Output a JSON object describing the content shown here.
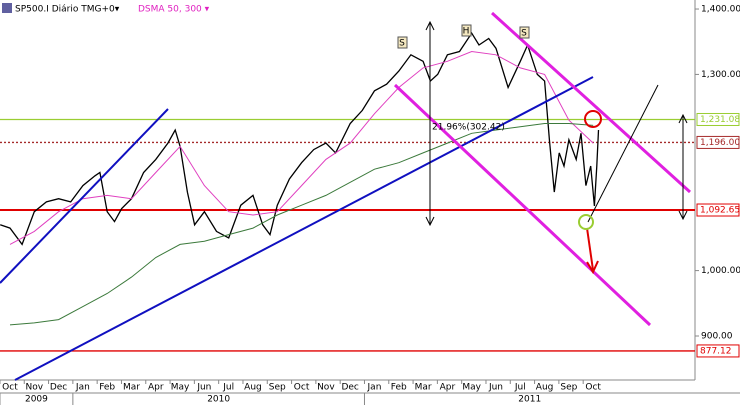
{
  "chart_data": {
    "type": "line",
    "header": {
      "symbol": "SP500.I Diário TMG+0▾",
      "indicator": "DSMA 50, 300 ▾"
    },
    "xlim": [
      -0.41,
      28.19
    ],
    "ylim": [
      832.7,
      1413.8
    ],
    "xticks": [
      {
        "value": 0,
        "label": "Oct"
      },
      {
        "value": 1,
        "label": "Nov"
      },
      {
        "value": 2,
        "label": "Dec"
      },
      {
        "value": 3,
        "label": "Jan"
      },
      {
        "value": 4,
        "label": "Feb"
      },
      {
        "value": 5,
        "label": "Mar"
      },
      {
        "value": 6,
        "label": "Apr"
      },
      {
        "value": 7,
        "label": "May"
      },
      {
        "value": 8,
        "label": "Jun"
      },
      {
        "value": 9,
        "label": "Jul"
      },
      {
        "value": 10,
        "label": "Aug"
      },
      {
        "value": 11,
        "label": "Sep"
      },
      {
        "value": 12,
        "label": "Oct"
      },
      {
        "value": 13,
        "label": "Nov"
      },
      {
        "value": 14,
        "label": "Dec"
      },
      {
        "value": 15,
        "label": "Jan"
      },
      {
        "value": 16,
        "label": "Feb"
      },
      {
        "value": 17,
        "label": "Mar"
      },
      {
        "value": 18,
        "label": "Apr"
      },
      {
        "value": 19,
        "label": "May"
      },
      {
        "value": 20,
        "label": "Jun"
      },
      {
        "value": 21,
        "label": "Jul"
      },
      {
        "value": 22,
        "label": "Aug"
      },
      {
        "value": 23,
        "label": "Sep"
      },
      {
        "value": 24,
        "label": "Oct"
      }
    ],
    "years": [
      {
        "value": 0,
        "label": "2009"
      },
      {
        "value": 3,
        "label": "2010"
      },
      {
        "value": 15,
        "label": "2011"
      }
    ],
    "yticks": [
      {
        "value": 900,
        "label": "900.00"
      },
      {
        "value": 1000,
        "label": "1,000.00"
      },
      {
        "value": 1300,
        "label": "1,300.00"
      },
      {
        "value": 1400,
        "label": "1,400.00"
      }
    ],
    "levels": [
      {
        "value": 1231.08,
        "label": "1,231.08",
        "color": "#9acd32"
      },
      {
        "value": 1196.0,
        "label": "1,196.00",
        "color": "#a52a2a"
      },
      {
        "value": 1092.65,
        "label": "1,092.65",
        "color": "#e00000"
      },
      {
        "value": 877.12,
        "label": "877.12",
        "color": "#e00000"
      }
    ],
    "series": [
      {
        "name": "SP500.I Diário TMG+0",
        "color": "#000000",
        "x": [
          -0.4,
          0,
          0.5,
          1,
          1.5,
          2,
          2.5,
          3,
          3.5,
          3.7,
          4,
          4.3,
          4.6,
          5,
          5.5,
          6,
          6.5,
          6.8,
          7,
          7.3,
          7.6,
          8,
          8.5,
          9,
          9.5,
          10,
          10.4,
          10.7,
          11,
          11.5,
          12,
          12.5,
          13,
          13.4,
          14,
          14.5,
          15,
          15.5,
          16,
          16.5,
          17,
          17.3,
          17.6,
          18,
          18.5,
          19,
          19.3,
          19.7,
          20,
          20.5,
          21,
          21.3,
          21.7,
          22,
          22.2,
          22.4,
          22.6,
          22.8,
          23,
          23.3,
          23.5,
          23.7,
          23.9,
          24.05,
          24.15,
          24.22
        ],
        "values": [
          1070,
          1065,
          1040,
          1090,
          1105,
          1110,
          1105,
          1130,
          1145,
          1150,
          1090,
          1075,
          1095,
          1110,
          1150,
          1170,
          1195,
          1215,
          1190,
          1120,
          1070,
          1090,
          1060,
          1050,
          1100,
          1115,
          1070,
          1055,
          1100,
          1140,
          1165,
          1185,
          1195,
          1180,
          1225,
          1245,
          1275,
          1285,
          1305,
          1330,
          1320,
          1290,
          1300,
          1330,
          1335,
          1363,
          1345,
          1355,
          1340,
          1280,
          1320,
          1345,
          1300,
          1290,
          1200,
          1120,
          1180,
          1160,
          1200,
          1170,
          1210,
          1130,
          1160,
          1099,
          1160,
          1215
        ]
      },
      {
        "color": "#e040c0",
        "x": [
          0,
          1,
          2,
          3,
          4,
          5,
          6,
          7,
          8,
          9,
          10,
          11,
          12,
          13,
          14,
          15,
          16,
          17,
          18,
          19,
          20,
          21,
          22,
          23,
          24
        ],
        "values": [
          1040,
          1060,
          1090,
          1110,
          1115,
          1110,
          1150,
          1190,
          1130,
          1090,
          1085,
          1090,
          1130,
          1170,
          1195,
          1240,
          1280,
          1310,
          1320,
          1335,
          1330,
          1310,
          1300,
          1230,
          1195
        ]
      },
      {
        "color": "#3c7a3c",
        "x": [
          0,
          1,
          2,
          3,
          4,
          5,
          6,
          7,
          8,
          9,
          10,
          11,
          12,
          13,
          14,
          15,
          16,
          17,
          18,
          19,
          20,
          21,
          22,
          23,
          24
        ],
        "values": [
          917,
          920,
          925,
          945,
          965,
          990,
          1020,
          1040,
          1045,
          1055,
          1065,
          1085,
          1100,
          1115,
          1135,
          1155,
          1165,
          1180,
          1195,
          1210,
          1215,
          1220,
          1225,
          1225,
          1222
        ]
      }
    ],
    "annotations": [
      "S",
      "H",
      "S",
      "21.96%(302.42)"
    ]
  }
}
